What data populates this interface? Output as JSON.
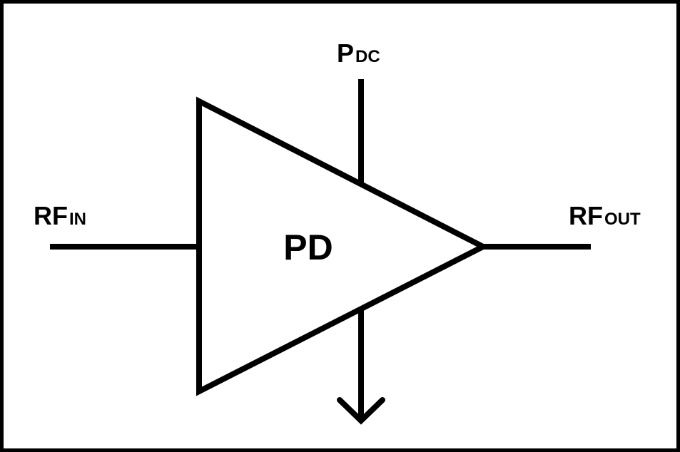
{
  "diagram": {
    "block_label": "PD",
    "ports": {
      "input": {
        "main": "RF",
        "sub": "IN"
      },
      "output": {
        "main": "RF",
        "sub": "OUT"
      },
      "supply": {
        "main": "P",
        "sub": "DC"
      }
    }
  },
  "colors": {
    "stroke": "#000000",
    "background": "#ffffff"
  }
}
